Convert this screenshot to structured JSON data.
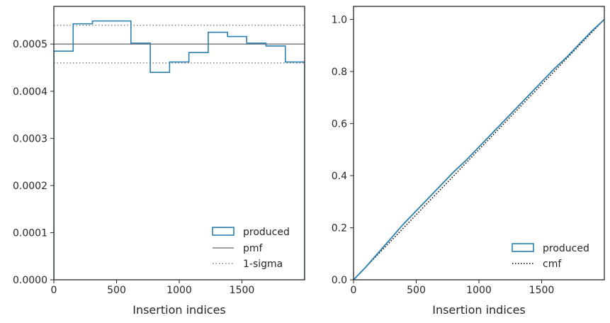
{
  "colors": {
    "produced": "#2a7fb0",
    "pmf": "#808080",
    "sigma": "#808080",
    "cmf": "#000000",
    "axes": "#262626"
  },
  "chart_data": [
    {
      "type": "line",
      "subtype": "step-histogram",
      "title": "",
      "xlabel": "Insertion indices",
      "ylabel": "",
      "xlim": [
        0,
        2000
      ],
      "ylim": [
        0,
        0.00058
      ],
      "xticks": [
        0,
        500,
        1000,
        1500
      ],
      "xtick_labels": [
        "0",
        "500",
        "1000",
        "1500"
      ],
      "yticks": [
        0,
        0.0001,
        0.0002,
        0.0003,
        0.0004,
        0.0005
      ],
      "ytick_labels": [
        "0.0000",
        "0.0001",
        "0.0002",
        "0.0003",
        "0.0004",
        "0.0005"
      ],
      "legend_position": "lower-right",
      "legend": [
        "produced",
        "pmf",
        "1-sigma"
      ],
      "series": [
        {
          "name": "produced",
          "style": "step",
          "bin_edges": [
            0,
            154,
            308,
            462,
            615,
            769,
            923,
            1077,
            1231,
            1385,
            1538,
            1692,
            1846,
            2000
          ],
          "values": [
            0.000485,
            0.000543,
            0.000549,
            0.000549,
            0.000502,
            0.00044,
            0.000462,
            0.000482,
            0.000525,
            0.000516,
            0.000502,
            0.000496,
            0.000462
          ]
        },
        {
          "name": "pmf",
          "style": "solid",
          "y": 0.0005
        },
        {
          "name": "1-sigma",
          "style": "dotted",
          "y": [
            0.00054,
            0.00046
          ]
        }
      ]
    },
    {
      "type": "line",
      "title": "",
      "xlabel": "Insertion indices",
      "ylabel": "",
      "xlim": [
        0,
        2000
      ],
      "ylim": [
        0,
        1.05
      ],
      "xticks": [
        0,
        500,
        1000,
        1500
      ],
      "xtick_labels": [
        "0",
        "500",
        "1000",
        "1500"
      ],
      "yticks": [
        0,
        0.2,
        0.4,
        0.6,
        0.8,
        1.0
      ],
      "ytick_labels": [
        "0.0",
        "0.2",
        "0.4",
        "0.6",
        "0.8",
        "1.0"
      ],
      "legend_position": "lower-right",
      "legend": [
        "produced",
        "cmf"
      ],
      "series": [
        {
          "name": "produced",
          "style": "step",
          "x": [
            0,
            100,
            200,
            300,
            400,
            500,
            600,
            700,
            800,
            900,
            1000,
            1100,
            1200,
            1300,
            1400,
            1500,
            1600,
            1700,
            1800,
            1900,
            2000
          ],
          "values": [
            0,
            0.05,
            0.105,
            0.16,
            0.215,
            0.265,
            0.315,
            0.365,
            0.415,
            0.46,
            0.51,
            0.56,
            0.61,
            0.66,
            0.71,
            0.76,
            0.81,
            0.855,
            0.905,
            0.955,
            1.0
          ]
        },
        {
          "name": "cmf",
          "style": "dotted",
          "x": [
            0,
            2000
          ],
          "values": [
            0,
            1.0
          ]
        }
      ]
    }
  ]
}
